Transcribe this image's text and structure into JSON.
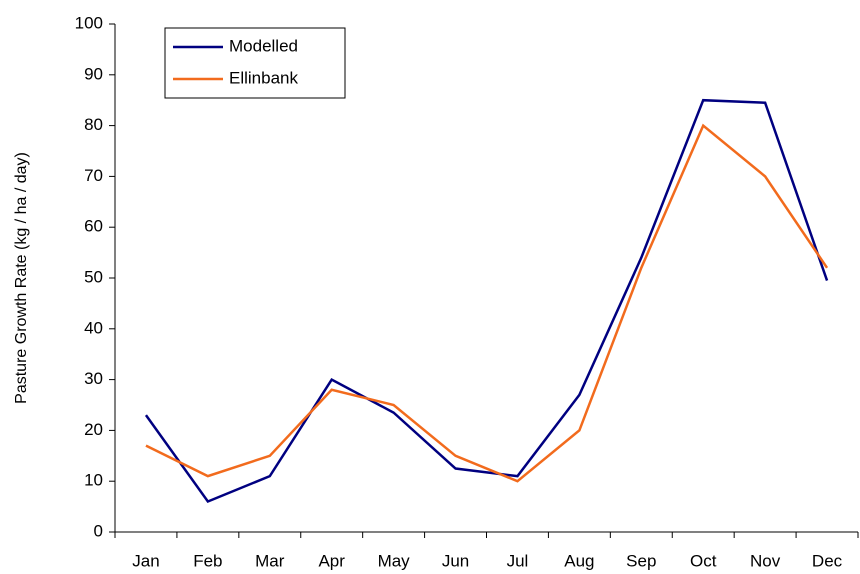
{
  "chart_data": {
    "type": "line",
    "y_label": "Pasture Growth Rate (kg / ha / day)",
    "categories": [
      "Jan",
      "Feb",
      "Mar",
      "Apr",
      "May",
      "Jun",
      "Jul",
      "Aug",
      "Sep",
      "Oct",
      "Nov",
      "Dec"
    ],
    "series": [
      {
        "name": "Modelled",
        "color": "#000080",
        "values": [
          23,
          6,
          11,
          30,
          23.5,
          12.5,
          11,
          27,
          54,
          85,
          84.5,
          49.5
        ]
      },
      {
        "name": "Ellinbank",
        "color": "#f26b1d",
        "values": [
          17,
          11,
          15,
          28,
          25,
          15,
          10,
          20,
          52,
          80,
          70,
          52
        ]
      }
    ],
    "ylim": [
      0,
      100
    ],
    "yticks": [
      0,
      10,
      20,
      30,
      40,
      50,
      60,
      70,
      80,
      90,
      100
    ],
    "grid": false,
    "legend": "upper-left"
  }
}
